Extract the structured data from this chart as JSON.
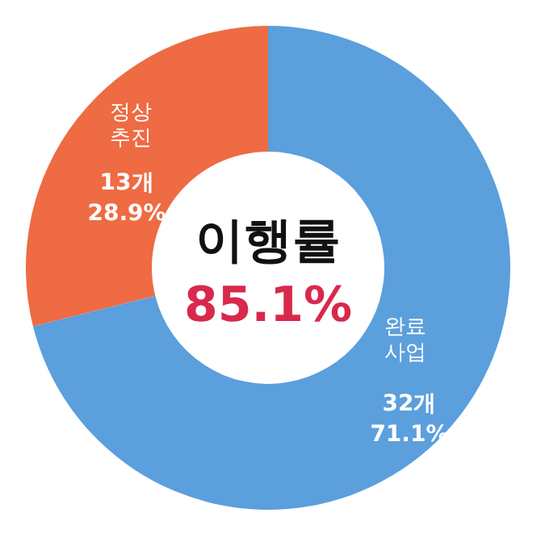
{
  "chart_data": {
    "type": "donut",
    "title": "이행률",
    "categories": [
      "완료사업",
      "정상추진"
    ],
    "values": [
      32,
      13
    ],
    "colors": [
      "#5b9fdc",
      "#ee6b43"
    ],
    "value_labels": [
      "32개 71.1%",
      "13개 28.9%"
    ],
    "annotations": [
      "85.1%"
    ],
    "legend": false
  }
}
